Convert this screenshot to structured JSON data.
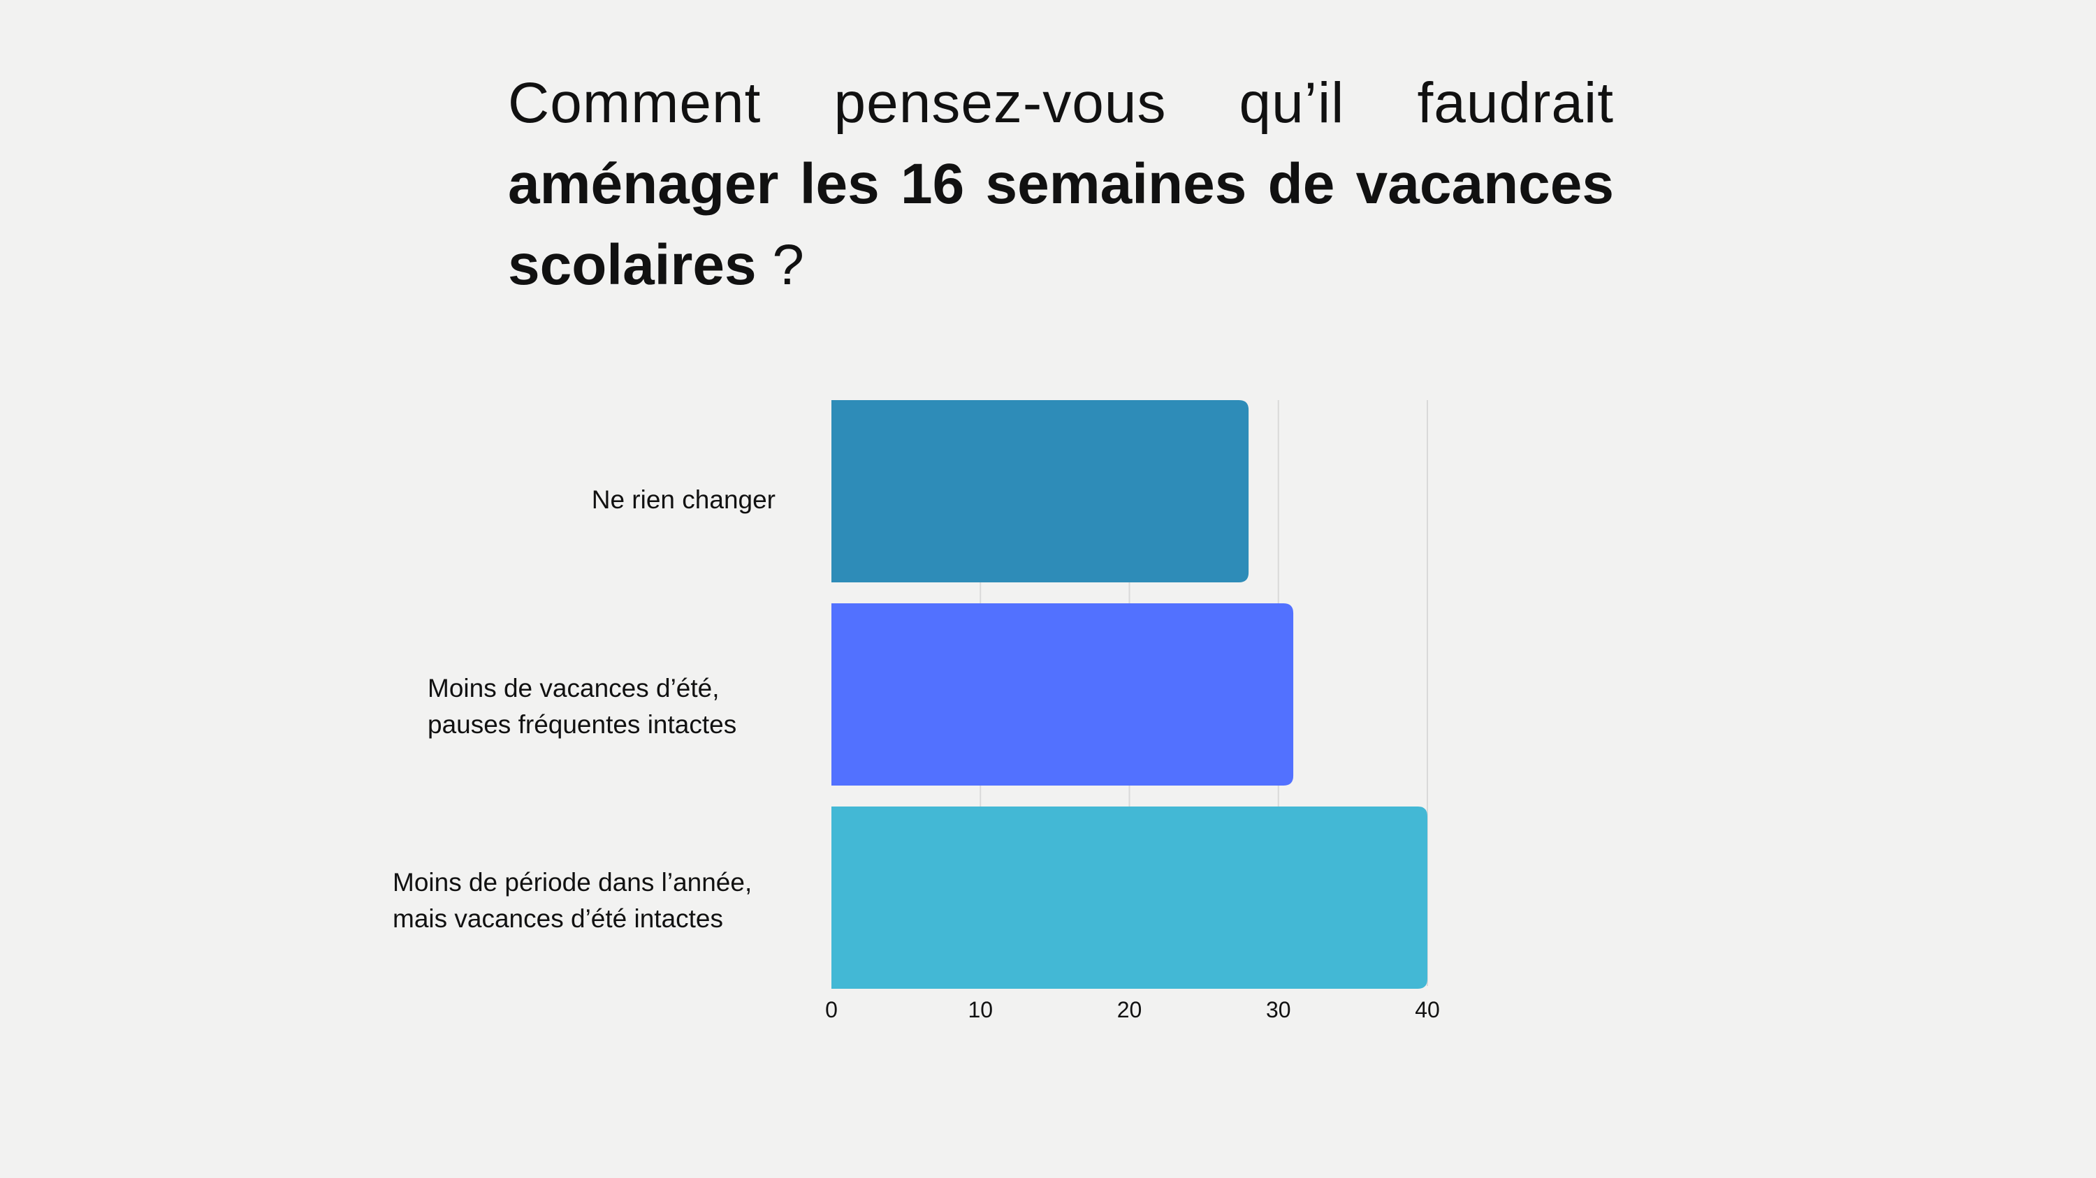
{
  "title": {
    "line1_words": [
      "Comment",
      "pensez-vous",
      "qu’il",
      "faudrait"
    ],
    "line2_bold": "aménager les 16 semaines de vacances",
    "line3_bold": "scolaires",
    "line3_end": " ?"
  },
  "colors": {
    "background": "#f2f2f1",
    "text": "#111111",
    "grid": "#d9d9d9"
  },
  "chart_data": {
    "type": "bar",
    "orientation": "horizontal",
    "categories": [
      "Ne rien changer",
      "Moins de vacances d’été,\npauses fréquentes intactes",
      "Moins de période dans l’année,\nmais vacances d’été intactes"
    ],
    "values": [
      28,
      31,
      40
    ],
    "bar_colors": [
      "#2e8cb8",
      "#5271ff",
      "#43b8d5"
    ],
    "xlim": [
      0,
      40
    ],
    "xticks": [
      0,
      10,
      20,
      30,
      40
    ],
    "grid": true,
    "legend": "none",
    "xlabel": "",
    "ylabel": ""
  }
}
